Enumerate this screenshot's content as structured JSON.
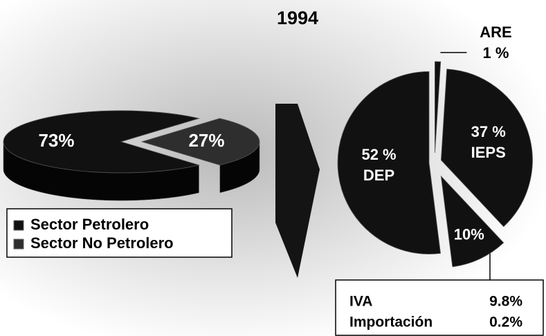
{
  "title": "1994",
  "chart_data": [
    {
      "type": "pie",
      "categories": [
        "Sector Petrolero",
        "Sector No Petrolero"
      ],
      "values": [
        73,
        27
      ],
      "value_labels": [
        "73%",
        "27%"
      ],
      "colors": [
        "#111111",
        "#2e2e2e"
      ]
    },
    {
      "type": "pie",
      "categories": [
        "ARE",
        "IEPS",
        null,
        "DEP"
      ],
      "values": [
        1,
        37,
        10,
        52
      ],
      "value_labels": [
        "1 %",
        "37 %",
        "10%",
        "52 %"
      ],
      "colors": [
        "#111111",
        "#111111",
        "#111111",
        "#111111"
      ]
    }
  ],
  "annotation": {
    "rows": [
      [
        "IVA",
        "9.8%"
      ],
      [
        "Importación",
        "0.2%"
      ]
    ]
  }
}
